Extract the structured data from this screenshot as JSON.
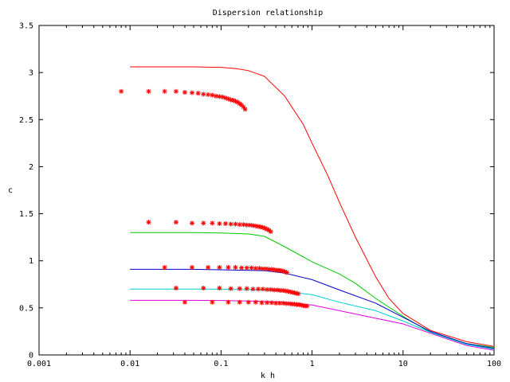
{
  "chart_data": {
    "type": "line",
    "title": "Dispersion relationship",
    "xlabel": "k h",
    "ylabel": "c",
    "xscale": "log",
    "xlim": [
      0.001,
      100
    ],
    "ylim": [
      0,
      3.5
    ],
    "xticks": [
      0.001,
      0.01,
      0.1,
      1,
      10,
      100
    ],
    "xtick_labels": [
      "0.001",
      "0.01",
      "0.1",
      "1",
      "10",
      "100"
    ],
    "yticks": [
      0,
      0.5,
      1,
      1.5,
      2,
      2.5,
      3,
      3.5
    ],
    "ytick_labels": [
      "0",
      "0.5",
      "1",
      "1.5",
      "2",
      "2.5",
      "3",
      "3.5"
    ],
    "grid": false,
    "series": [
      {
        "kind": "line",
        "color": "#ff0000",
        "points": [
          [
            0.01,
            3.06
          ],
          [
            0.02,
            3.06
          ],
          [
            0.05,
            3.06
          ],
          [
            0.1,
            3.055
          ],
          [
            0.15,
            3.04
          ],
          [
            0.2,
            3.02
          ],
          [
            0.3,
            2.96
          ],
          [
            0.5,
            2.75
          ],
          [
            0.8,
            2.45
          ],
          [
            1,
            2.25
          ],
          [
            1.5,
            1.9
          ],
          [
            2,
            1.62
          ],
          [
            3,
            1.25
          ],
          [
            5,
            0.83
          ],
          [
            7,
            0.6
          ],
          [
            10,
            0.44
          ],
          [
            20,
            0.26
          ],
          [
            50,
            0.14
          ],
          [
            100,
            0.09
          ]
        ]
      },
      {
        "kind": "line",
        "color": "#00cc00",
        "points": [
          [
            0.01,
            1.3
          ],
          [
            0.05,
            1.3
          ],
          [
            0.1,
            1.295
          ],
          [
            0.2,
            1.285
          ],
          [
            0.3,
            1.26
          ],
          [
            0.5,
            1.15
          ],
          [
            1,
            0.99
          ],
          [
            2,
            0.86
          ],
          [
            3,
            0.76
          ],
          [
            5,
            0.6
          ],
          [
            10,
            0.41
          ],
          [
            20,
            0.24
          ],
          [
            50,
            0.12
          ],
          [
            100,
            0.08
          ]
        ]
      },
      {
        "kind": "line",
        "color": "#0000cc",
        "points": [
          [
            0.01,
            0.91
          ],
          [
            0.05,
            0.91
          ],
          [
            0.1,
            0.905
          ],
          [
            0.3,
            0.895
          ],
          [
            0.5,
            0.87
          ],
          [
            1,
            0.8
          ],
          [
            2,
            0.69
          ],
          [
            5,
            0.55
          ],
          [
            10,
            0.4
          ],
          [
            20,
            0.25
          ],
          [
            50,
            0.12
          ],
          [
            100,
            0.07
          ]
        ]
      },
      {
        "kind": "line",
        "color": "#00d0d0",
        "points": [
          [
            0.01,
            0.7
          ],
          [
            0.05,
            0.7
          ],
          [
            0.1,
            0.698
          ],
          [
            0.3,
            0.69
          ],
          [
            0.5,
            0.675
          ],
          [
            1,
            0.64
          ],
          [
            2,
            0.56
          ],
          [
            5,
            0.47
          ],
          [
            10,
            0.36
          ],
          [
            20,
            0.24
          ],
          [
            50,
            0.11
          ],
          [
            100,
            0.06
          ]
        ]
      },
      {
        "kind": "line",
        "color": "#e000e0",
        "points": [
          [
            0.01,
            0.58
          ],
          [
            0.05,
            0.58
          ],
          [
            0.1,
            0.578
          ],
          [
            0.3,
            0.57
          ],
          [
            0.5,
            0.56
          ],
          [
            1,
            0.53
          ],
          [
            2,
            0.47
          ],
          [
            5,
            0.39
          ],
          [
            10,
            0.33
          ],
          [
            20,
            0.23
          ],
          [
            50,
            0.1
          ],
          [
            100,
            0.05
          ]
        ]
      },
      {
        "kind": "scatter",
        "color": "#ff0000",
        "marker": "*",
        "points": [
          [
            0.008,
            2.8
          ],
          [
            0.016,
            2.8
          ],
          [
            0.024,
            2.8
          ],
          [
            0.032,
            2.8
          ],
          [
            0.04,
            2.79
          ],
          [
            0.048,
            2.785
          ],
          [
            0.056,
            2.78
          ],
          [
            0.064,
            2.77
          ],
          [
            0.072,
            2.765
          ],
          [
            0.08,
            2.76
          ],
          [
            0.088,
            2.75
          ],
          [
            0.096,
            2.745
          ],
          [
            0.104,
            2.74
          ],
          [
            0.112,
            2.73
          ],
          [
            0.12,
            2.72
          ],
          [
            0.128,
            2.71
          ],
          [
            0.136,
            2.705
          ],
          [
            0.144,
            2.695
          ],
          [
            0.152,
            2.685
          ],
          [
            0.16,
            2.67
          ],
          [
            0.168,
            2.655
          ],
          [
            0.176,
            2.635
          ],
          [
            0.184,
            2.61
          ]
        ]
      },
      {
        "kind": "scatter",
        "color": "#ff0000",
        "marker": "*",
        "points": [
          [
            0.016,
            1.41
          ],
          [
            0.032,
            1.41
          ],
          [
            0.048,
            1.4
          ],
          [
            0.064,
            1.4
          ],
          [
            0.08,
            1.4
          ],
          [
            0.096,
            1.395
          ],
          [
            0.112,
            1.395
          ],
          [
            0.128,
            1.39
          ],
          [
            0.144,
            1.39
          ],
          [
            0.16,
            1.385
          ],
          [
            0.176,
            1.385
          ],
          [
            0.192,
            1.38
          ],
          [
            0.208,
            1.38
          ],
          [
            0.224,
            1.375
          ],
          [
            0.24,
            1.37
          ],
          [
            0.256,
            1.365
          ],
          [
            0.272,
            1.36
          ],
          [
            0.288,
            1.355
          ],
          [
            0.304,
            1.345
          ],
          [
            0.32,
            1.335
          ],
          [
            0.336,
            1.325
          ],
          [
            0.352,
            1.31
          ]
        ]
      },
      {
        "kind": "scatter",
        "color": "#ff0000",
        "marker": "*",
        "points": [
          [
            0.024,
            0.93
          ],
          [
            0.048,
            0.93
          ],
          [
            0.072,
            0.93
          ],
          [
            0.096,
            0.93
          ],
          [
            0.12,
            0.93
          ],
          [
            0.144,
            0.93
          ],
          [
            0.168,
            0.925
          ],
          [
            0.192,
            0.925
          ],
          [
            0.216,
            0.925
          ],
          [
            0.24,
            0.92
          ],
          [
            0.264,
            0.92
          ],
          [
            0.288,
            0.915
          ],
          [
            0.312,
            0.915
          ],
          [
            0.336,
            0.91
          ],
          [
            0.36,
            0.91
          ],
          [
            0.384,
            0.905
          ],
          [
            0.408,
            0.9
          ],
          [
            0.432,
            0.9
          ],
          [
            0.456,
            0.895
          ],
          [
            0.48,
            0.89
          ],
          [
            0.504,
            0.885
          ],
          [
            0.528,
            0.875
          ]
        ]
      },
      {
        "kind": "scatter",
        "color": "#ff0000",
        "marker": "*",
        "points": [
          [
            0.032,
            0.71
          ],
          [
            0.064,
            0.71
          ],
          [
            0.096,
            0.71
          ],
          [
            0.128,
            0.705
          ],
          [
            0.16,
            0.705
          ],
          [
            0.192,
            0.705
          ],
          [
            0.224,
            0.7
          ],
          [
            0.256,
            0.7
          ],
          [
            0.288,
            0.7
          ],
          [
            0.32,
            0.695
          ],
          [
            0.352,
            0.695
          ],
          [
            0.384,
            0.69
          ],
          [
            0.416,
            0.69
          ],
          [
            0.448,
            0.685
          ],
          [
            0.48,
            0.685
          ],
          [
            0.512,
            0.68
          ],
          [
            0.544,
            0.675
          ],
          [
            0.576,
            0.67
          ],
          [
            0.608,
            0.665
          ],
          [
            0.64,
            0.66
          ],
          [
            0.672,
            0.655
          ],
          [
            0.704,
            0.65
          ]
        ]
      },
      {
        "kind": "scatter",
        "color": "#ff0000",
        "marker": "*",
        "points": [
          [
            0.04,
            0.56
          ],
          [
            0.08,
            0.56
          ],
          [
            0.12,
            0.56
          ],
          [
            0.16,
            0.56
          ],
          [
            0.2,
            0.56
          ],
          [
            0.24,
            0.56
          ],
          [
            0.28,
            0.555
          ],
          [
            0.32,
            0.555
          ],
          [
            0.36,
            0.555
          ],
          [
            0.4,
            0.55
          ],
          [
            0.44,
            0.55
          ],
          [
            0.48,
            0.55
          ],
          [
            0.52,
            0.545
          ],
          [
            0.56,
            0.545
          ],
          [
            0.6,
            0.54
          ],
          [
            0.64,
            0.54
          ],
          [
            0.68,
            0.535
          ],
          [
            0.72,
            0.535
          ],
          [
            0.76,
            0.53
          ],
          [
            0.8,
            0.525
          ],
          [
            0.84,
            0.52
          ],
          [
            0.88,
            0.52
          ]
        ]
      }
    ]
  }
}
